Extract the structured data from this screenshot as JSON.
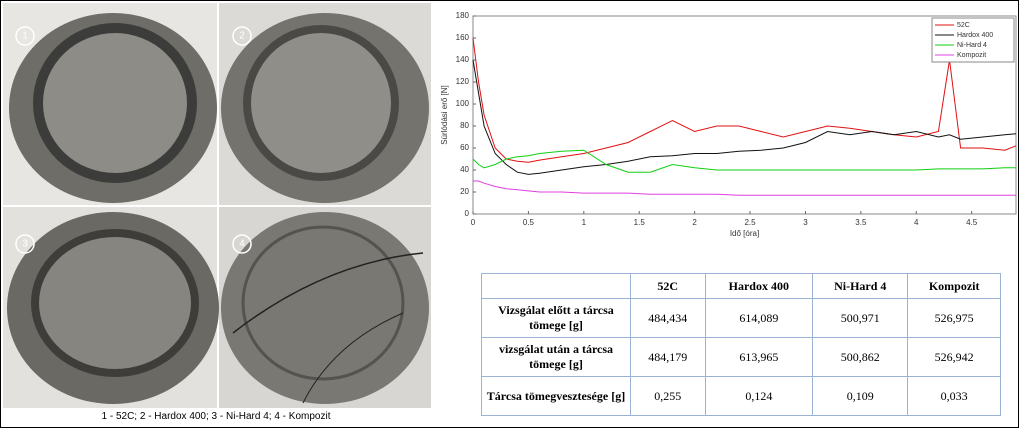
{
  "photos": [
    {
      "number": "1"
    },
    {
      "number": "2"
    },
    {
      "number": "3"
    },
    {
      "number": "4"
    }
  ],
  "caption": "1 - 52C; 2 - Hardox 400; 3 - Ni-Hard 4; 4 - Kompozit",
  "chart_data": {
    "type": "line",
    "x_label": "Idő [óra]",
    "y_label": "Súrlódási erő [N]",
    "x": [
      0,
      0.05,
      0.1,
      0.2,
      0.3,
      0.4,
      0.5,
      0.6,
      0.8,
      1.0,
      1.2,
      1.4,
      1.6,
      1.8,
      2.0,
      2.2,
      2.4,
      2.6,
      2.8,
      3.0,
      3.2,
      3.4,
      3.6,
      3.8,
      4.0,
      4.2,
      4.3,
      4.4,
      4.6,
      4.8,
      4.9
    ],
    "series": [
      {
        "name": "52C",
        "color": "#e01010",
        "values": [
          160,
          120,
          90,
          60,
          50,
          48,
          47,
          49,
          52,
          55,
          60,
          65,
          75,
          85,
          75,
          80,
          80,
          75,
          70,
          75,
          80,
          78,
          75,
          72,
          70,
          75,
          140,
          60,
          60,
          58,
          62
        ]
      },
      {
        "name": "Hardox 400",
        "color": "#111111",
        "values": [
          140,
          110,
          80,
          55,
          45,
          38,
          36,
          37,
          40,
          43,
          45,
          48,
          52,
          53,
          55,
          55,
          57,
          58,
          60,
          65,
          75,
          72,
          75,
          72,
          75,
          70,
          72,
          68,
          70,
          72,
          73
        ]
      },
      {
        "name": "Ni-Hard 4",
        "color": "#10d010",
        "values": [
          50,
          45,
          42,
          45,
          50,
          52,
          53,
          55,
          57,
          58,
          45,
          38,
          38,
          45,
          42,
          40,
          40,
          40,
          40,
          40,
          40,
          40,
          40,
          40,
          40,
          41,
          41,
          41,
          41,
          42,
          42
        ]
      },
      {
        "name": "Kompozit",
        "color": "#e040e0",
        "values": [
          30,
          30,
          28,
          25,
          23,
          22,
          21,
          20,
          20,
          19,
          19,
          19,
          18,
          18,
          18,
          18,
          17,
          17,
          17,
          17,
          17,
          17,
          17,
          17,
          17,
          17,
          17,
          17,
          17,
          17,
          17
        ]
      }
    ],
    "xlim": [
      0,
      4.9
    ],
    "xticks": [
      0,
      0.5,
      1,
      1.5,
      2,
      2.5,
      3,
      3.5,
      4,
      4.5
    ],
    "ylim": [
      0,
      180
    ],
    "yticks": [
      0,
      20,
      40,
      60,
      80,
      100,
      120,
      140,
      160,
      180
    ],
    "legend": "upper right"
  },
  "table": {
    "columns": [
      "52C",
      "Hardox 400",
      "Ni-Hard 4",
      "Kompozit"
    ],
    "rows": [
      {
        "label": "Vizsgálat előtt a tárcsa tömege [g]",
        "values": [
          "484,434",
          "614,089",
          "500,971",
          "526,975"
        ]
      },
      {
        "label": "vizsgálat után a tárcsa tömege [g]",
        "values": [
          "484,179",
          "613,965",
          "500,862",
          "526,942"
        ]
      },
      {
        "label": "Tárcsa tömegvesztesége [g]",
        "values": [
          "0,255",
          "0,124",
          "0,109",
          "0,033"
        ]
      }
    ]
  }
}
